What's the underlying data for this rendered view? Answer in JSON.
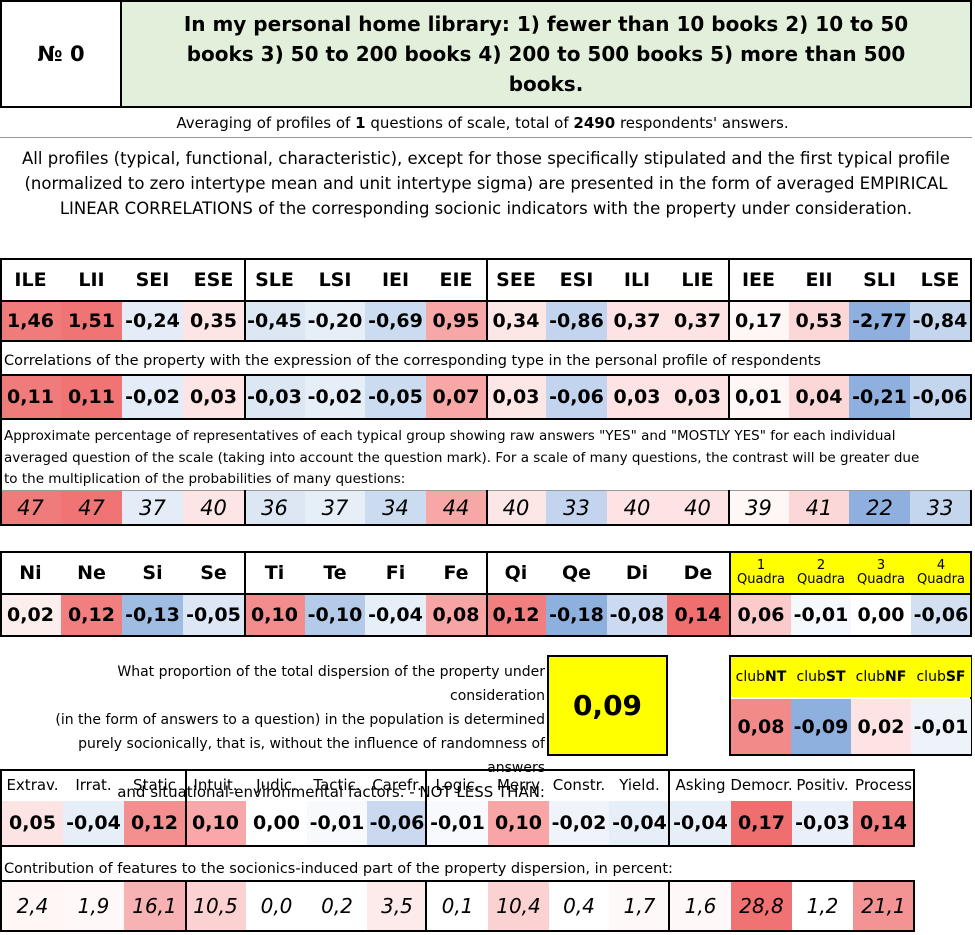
{
  "header": {
    "number_label": "№",
    "number_value": "0",
    "question": "In my personal home library: 1) fewer than 10 books 2) 10 to 50 books 3) 50 to 200 books 4) 200 to 500 books 5) more than 500 books."
  },
  "averaging": {
    "prefix": "Averaging of profiles of ",
    "count": "1",
    "middle": " questions of scale, total of ",
    "respondents": "2490",
    "suffix": " respondents' answers."
  },
  "description": "All profiles (typical, functional, characteristic), except for those specifically stipulated and the first typical profile (normalized to zero intertype mean and unit intertype sigma) are presented in the form of averaged EMPIRICAL LINEAR CORRELATIONS of the corresponding socionic indicators with the property under consideration.",
  "types": {
    "headers": [
      "ILE",
      "LII",
      "SEI",
      "ESE",
      "SLE",
      "LSI",
      "IEI",
      "EIE",
      "SEE",
      "ESI",
      "ILI",
      "LIE",
      "IEE",
      "EII",
      "SLI",
      "LSE"
    ],
    "values": [
      "1,46",
      "1,51",
      "-0,24",
      "0,35",
      "-0,45",
      "-0,20",
      "-0,69",
      "0,95",
      "0,34",
      "-0,86",
      "0,37",
      "0,37",
      "0,17",
      "0,53",
      "-2,77",
      "-0,84"
    ],
    "colors": [
      "#f07b7b",
      "#f07474",
      "#e4edf7",
      "#fde5e5",
      "#dde7f4",
      "#e6eef8",
      "#ccdcf0",
      "#f8a7a7",
      "#fde6e6",
      "#c3d5ee",
      "#fde3e3",
      "#fde3e3",
      "#fff6f6",
      "#fcd7d7",
      "#8fb0de",
      "#c4d6ee"
    ]
  },
  "correlations": {
    "caption": "Correlations of the property with the expression of the corresponding type in the personal profile of respondents",
    "values": [
      "0,11",
      "0,11",
      "-0,02",
      "0,03",
      "-0,03",
      "-0,02",
      "-0,05",
      "0,07",
      "0,03",
      "-0,06",
      "0,03",
      "0,03",
      "0,01",
      "0,04",
      "-0,21",
      "-0,06"
    ],
    "colors": [
      "#f07b7b",
      "#f07474",
      "#e4edf7",
      "#fde5e5",
      "#dde7f4",
      "#e6eef8",
      "#ccdcf0",
      "#f8a7a7",
      "#fde6e6",
      "#c3d5ee",
      "#fde3e3",
      "#fde3e3",
      "#fff6f6",
      "#fcd7d7",
      "#8fb0de",
      "#c4d6ee"
    ]
  },
  "percentages": {
    "caption": "Approximate percentage of representatives of each typical group showing raw answers \"YES\" and \"MOSTLY YES\" for each individual averaged question of the scale (taking into account the question mark). For a scale of many questions, the contrast will be greater due to the multiplication of the probabilities of many questions:",
    "values": [
      "47",
      "47",
      "37",
      "40",
      "36",
      "37",
      "34",
      "44",
      "40",
      "33",
      "40",
      "40",
      "39",
      "41",
      "22",
      "33"
    ],
    "colors": [
      "#f07b7b",
      "#f07474",
      "#e4edf7",
      "#fde5e5",
      "#dde7f4",
      "#e6eef8",
      "#ccdcf0",
      "#f8a7a7",
      "#fde6e6",
      "#c3d5ee",
      "#fde3e3",
      "#fde3e3",
      "#fff6f6",
      "#fcd7d7",
      "#8fb0de",
      "#c4d6ee"
    ]
  },
  "functions": {
    "headers": [
      "Ni",
      "Ne",
      "Si",
      "Se",
      "Ti",
      "Te",
      "Fi",
      "Fe",
      "Qi",
      "Qe",
      "Di",
      "De"
    ],
    "values": [
      "0,02",
      "0,12",
      "-0,13",
      "-0,05",
      "0,10",
      "-0,10",
      "-0,04",
      "0,08",
      "0,12",
      "-0,18",
      "-0,08",
      "0,14"
    ],
    "colors": [
      "#fdeeee",
      "#f17f7f",
      "#9fbce3",
      "#dce6f4",
      "#f38d8d",
      "#b4cae9",
      "#e6eef8",
      "#f6a4a4",
      "#f17f7f",
      "#8db0de",
      "#cbdaf0",
      "#ef6e6e"
    ]
  },
  "quadras": {
    "headers": [
      {
        "num": "1",
        "label": "Quadra"
      },
      {
        "num": "2",
        "label": "Quadra"
      },
      {
        "num": "3",
        "label": "Quadra"
      },
      {
        "num": "4",
        "label": "Quadra"
      }
    ],
    "values": [
      "0,06",
      "-0,01",
      "0,00",
      "-0,06"
    ],
    "colors": [
      "#fbcaca",
      "#f5f8fc",
      "#ffffff",
      "#d3e0f2"
    ],
    "header_color": "#ffff00"
  },
  "dispersion": {
    "text_lines": [
      "What proportion of the total dispersion of the property under consideration",
      "(in the form of answers to a question) in the population is determined",
      "purely socionically, that is, without the influence of randomness of answers",
      "and situational-environmental factors. - NOT LESS THAN:"
    ],
    "value": "0,09",
    "value_color": "#ffff00"
  },
  "clubs": {
    "headers": [
      {
        "prefix": "club",
        "bold": "NT"
      },
      {
        "prefix": "club",
        "bold": "ST"
      },
      {
        "prefix": "club",
        "bold": "NF"
      },
      {
        "prefix": "club",
        "bold": "SF"
      }
    ],
    "values": [
      "0,08",
      "-0,09",
      "0,02",
      "-0,01"
    ],
    "colors": [
      "#f38a8a",
      "#8db0de",
      "#fde3e3",
      "#eef3fa"
    ]
  },
  "features": {
    "headers": [
      "Extrav.",
      "Irrat.",
      "Static",
      "Intuit.",
      "Judic.",
      "Tactic.",
      "Carefr.",
      "Logic.",
      "Merry",
      "Constr.",
      "Yield.",
      "Asking",
      "Democr.",
      "Positiv.",
      "Process"
    ],
    "values": [
      "0,05",
      "-0,04",
      "0,12",
      "0,10",
      "0,00",
      "-0,01",
      "-0,06",
      "-0,01",
      "0,10",
      "-0,02",
      "-0,04",
      "-0,04",
      "0,17",
      "-0,03",
      "0,14"
    ],
    "colors": [
      "#fce4e4",
      "#e6eef8",
      "#f48f8f",
      "#f8a8a8",
      "#ffffff",
      "#f7f9fd",
      "#cad9ef",
      "#f7f9fd",
      "#f7a5a5",
      "#f0f4fa",
      "#e6eef8",
      "#e6eef8",
      "#ef6e6e",
      "#eaf0f9",
      "#f17f7f"
    ]
  },
  "contribution": {
    "caption": "Contribution of features to the socionics-induced part of the property dispersion, in percent:",
    "values": [
      "2,4",
      "1,9",
      "16,1",
      "10,5",
      "0,0",
      "0,2",
      "3,5",
      "0,1",
      "10,4",
      "0,4",
      "1,7",
      "1,6",
      "28,8",
      "1,2",
      "21,1"
    ],
    "colors": [
      "#fff6f6",
      "#fff8f8",
      "#f7b3b3",
      "#fbd1d1",
      "#ffffff",
      "#ffffff",
      "#fdeaea",
      "#ffffff",
      "#fbd1d1",
      "#ffffff",
      "#fff8f8",
      "#fff8f8",
      "#f07272",
      "#ffffff",
      "#f39393"
    ]
  }
}
